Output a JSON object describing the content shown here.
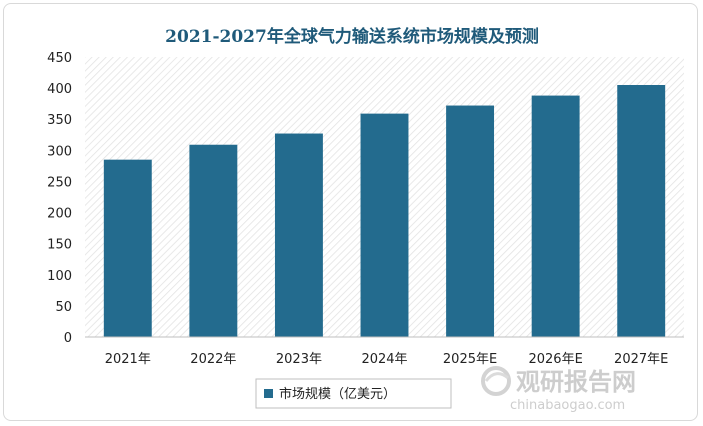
{
  "chart_data": {
    "type": "bar",
    "title": "2021-2027年全球气力输送系统市场规模及预测",
    "categories": [
      "2021年",
      "2022年",
      "2023年",
      "2024年",
      "2025年E",
      "2026年E",
      "2027年E"
    ],
    "series": [
      {
        "name": "市场规模（亿美元）",
        "values": [
          285,
          309,
          327,
          359,
          372,
          388,
          405
        ]
      }
    ],
    "xlabel": "",
    "ylabel": "",
    "ylim": [
      0,
      450
    ],
    "yticks": [
      0,
      50,
      100,
      150,
      200,
      250,
      300,
      350,
      400,
      450
    ],
    "bar_color": "#236b8e",
    "grid": false,
    "legend_position": "bottom-center",
    "plot_background": "diagonal-hatch"
  },
  "watermark": {
    "brand": "观研报告网",
    "url": "chinabaogao.com"
  }
}
